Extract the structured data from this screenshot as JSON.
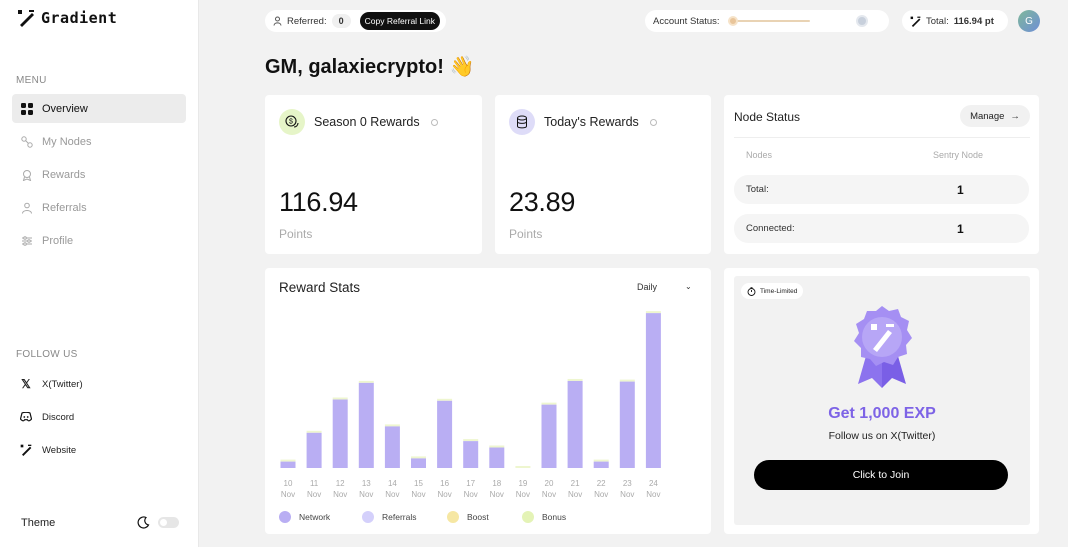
{
  "app": {
    "logo_text": "Gradient"
  },
  "sidebar": {
    "menu_title": "MENU",
    "items": [
      {
        "label": "Overview",
        "icon": "grid-icon",
        "active": true
      },
      {
        "label": "My Nodes",
        "icon": "nodes-icon"
      },
      {
        "label": "Rewards",
        "icon": "rewards-icon"
      },
      {
        "label": "Referrals",
        "icon": "users-icon"
      },
      {
        "label": "Profile",
        "icon": "profile-icon"
      }
    ],
    "follow_title": "FOLLOW US",
    "follow": [
      {
        "label": "X(Twitter)",
        "icon": "x-icon"
      },
      {
        "label": "Discord",
        "icon": "discord-icon"
      },
      {
        "label": "Website",
        "icon": "gradient-logo-icon"
      }
    ],
    "theme_label": "Theme"
  },
  "topbar": {
    "referred_label": "Referred:",
    "referred_count": "0",
    "copy_label": "Copy Referral Link",
    "account_status_label": "Account Status:",
    "account_status_level": 0.0,
    "total_label": "Total:",
    "total_value": "116.94 pt",
    "avatar_initial": "G"
  },
  "greeting": "GM, galaxiecrypto! 👋",
  "season_card": {
    "title": "Season 0 Rewards",
    "value": "116.94",
    "unit": "Points"
  },
  "today_card": {
    "title": "Today's Rewards",
    "value": "23.89",
    "unit": "Points"
  },
  "node_status": {
    "title": "Node Status",
    "manage_label": "Manage",
    "col_nodes": "Nodes",
    "col_sentry": "Sentry Node",
    "rows": [
      {
        "label": "Total:",
        "value": "1"
      },
      {
        "label": "Connected:",
        "value": "1"
      }
    ]
  },
  "reward_stats": {
    "title": "Reward Stats",
    "period": "Daily",
    "legend": [
      {
        "name": "Network",
        "color": "#b9aef3"
      },
      {
        "name": "Referrals",
        "color": "#d4d0fb"
      },
      {
        "name": "Boost",
        "color": "#f6e7a3"
      },
      {
        "name": "Bonus",
        "color": "#e4f3b6"
      }
    ]
  },
  "chart_data": {
    "type": "bar",
    "title": "Reward Stats",
    "categories": [
      "10 Nov",
      "11 Nov",
      "12 Nov",
      "13 Nov",
      "14 Nov",
      "15 Nov",
      "16 Nov",
      "17 Nov",
      "18 Nov",
      "19 Nov",
      "20 Nov",
      "21 Nov",
      "22 Nov",
      "23 Nov",
      "24 Nov"
    ],
    "series": [
      {
        "name": "Network",
        "values": [
          1.0,
          5.5,
          10.7,
          13.3,
          6.5,
          1.5,
          10.5,
          4.2,
          3.2,
          0.0,
          9.9,
          13.6,
          1.0,
          13.5,
          24.2
        ]
      }
    ],
    "ylim": [
      0,
      25
    ],
    "legend_position": "bottom"
  },
  "promo": {
    "chip_label": "Time-Limited",
    "headline": "Get 1,000 EXP",
    "subtitle": "Follow us on X(Twitter)",
    "cta_label": "Click to Join"
  }
}
